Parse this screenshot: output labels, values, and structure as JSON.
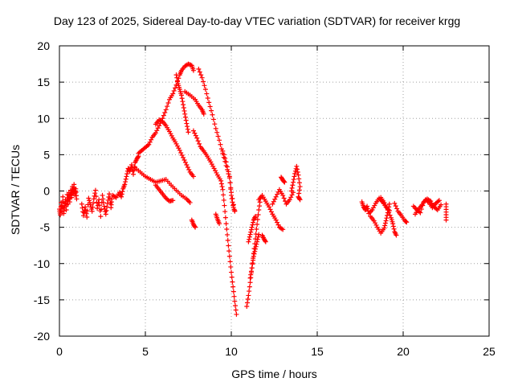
{
  "chart_data": {
    "type": "scatter",
    "title": "Day 123 of 2025, Sidereal Day-to-day VTEC variation (SDTVAR) for receiver krgg",
    "xlabel": "GPS time / hours",
    "ylabel": "SDTVAR / TECUs",
    "xlim": [
      0,
      25
    ],
    "ylim": [
      -20,
      20
    ],
    "xticks": [
      0,
      5,
      10,
      15,
      20,
      25
    ],
    "yticks": [
      -20,
      -15,
      -10,
      -5,
      0,
      5,
      10,
      15,
      20
    ],
    "grid": true,
    "marker": "+",
    "color": "#ff0000",
    "segments": [
      [
        [
          0.0,
          -2.5
        ],
        [
          0.05,
          -3.3
        ],
        [
          0.1,
          -1.6
        ],
        [
          0.15,
          -2.9
        ],
        [
          0.2,
          -0.8
        ],
        [
          0.25,
          -3.1
        ],
        [
          0.3,
          -2.0
        ],
        [
          0.35,
          -1.2
        ],
        [
          0.4,
          -2.6
        ],
        [
          0.45,
          -0.5
        ],
        [
          0.5,
          -1.8
        ]
      ],
      [
        [
          0.5,
          -1.3
        ],
        [
          0.55,
          -0.2
        ],
        [
          0.6,
          -1.5
        ],
        [
          0.65,
          0.1
        ],
        [
          0.7,
          -0.9
        ],
        [
          0.75,
          0.6
        ],
        [
          0.8,
          -0.4
        ],
        [
          0.85,
          0.9
        ],
        [
          0.9,
          -0.6
        ],
        [
          0.95,
          0.3
        ],
        [
          1.0,
          -1.1
        ]
      ],
      [
        [
          1.3,
          -1.8
        ],
        [
          1.4,
          -3.4
        ],
        [
          1.5,
          -2.2
        ],
        [
          1.6,
          -3.6
        ],
        [
          1.7,
          -1.0
        ],
        [
          1.8,
          -1.9
        ],
        [
          1.9,
          -2.8
        ],
        [
          2.0,
          -1.1
        ],
        [
          2.1,
          0.1
        ],
        [
          2.2,
          -2.4
        ],
        [
          2.3,
          -1.2
        ],
        [
          2.4,
          -3.5
        ],
        [
          2.5,
          -0.6
        ],
        [
          2.6,
          -2.1
        ],
        [
          2.7,
          -3.2
        ],
        [
          2.8,
          -1.7
        ],
        [
          2.9,
          -0.4
        ],
        [
          3.0,
          -2.3
        ],
        [
          3.05,
          -1.1
        ]
      ],
      [
        [
          3.1,
          -0.6
        ],
        [
          3.3,
          -0.9
        ],
        [
          3.5,
          -0.2
        ],
        [
          3.6,
          -0.8
        ],
        [
          3.7,
          0.3
        ],
        [
          3.8,
          0.9
        ],
        [
          3.9,
          2.0
        ],
        [
          4.0,
          3.1
        ],
        [
          4.1,
          2.7
        ],
        [
          4.2,
          3.6
        ],
        [
          4.3,
          2.3
        ],
        [
          4.4,
          3.9
        ],
        [
          4.5,
          4.4
        ],
        [
          4.6,
          4.8
        ]
      ],
      [
        [
          4.6,
          5.2
        ],
        [
          4.8,
          5.6
        ],
        [
          5.0,
          6.0
        ],
        [
          5.2,
          6.4
        ],
        [
          5.4,
          7.4
        ],
        [
          5.6,
          8.0
        ],
        [
          5.8,
          9.0
        ],
        [
          6.0,
          10.0
        ],
        [
          6.2,
          11.2
        ],
        [
          6.4,
          12.6
        ],
        [
          6.6,
          13.4
        ],
        [
          6.8,
          14.6
        ],
        [
          7.0,
          16.0
        ],
        [
          7.1,
          16.6
        ],
        [
          7.3,
          17.2
        ],
        [
          7.5,
          17.5
        ],
        [
          7.7,
          17.3
        ],
        [
          7.8,
          16.6
        ]
      ],
      [
        [
          6.8,
          16.0
        ],
        [
          6.9,
          14.8
        ],
        [
          7.0,
          14.0
        ],
        [
          7.1,
          13.2
        ],
        [
          7.2,
          11.9
        ],
        [
          7.3,
          10.6
        ],
        [
          7.4,
          9.3
        ],
        [
          7.5,
          8.1
        ]
      ],
      [
        [
          5.6,
          9.2
        ],
        [
          5.8,
          9.8
        ],
        [
          6.0,
          9.6
        ],
        [
          6.2,
          9.0
        ],
        [
          6.4,
          8.2
        ],
        [
          6.6,
          7.3
        ],
        [
          6.8,
          6.5
        ],
        [
          7.0,
          5.6
        ],
        [
          7.2,
          4.6
        ],
        [
          7.4,
          3.6
        ],
        [
          7.6,
          2.6
        ],
        [
          7.8,
          2.0
        ]
      ],
      [
        [
          7.3,
          13.7
        ],
        [
          7.6,
          13.2
        ],
        [
          7.9,
          12.6
        ],
        [
          8.1,
          11.8
        ],
        [
          8.3,
          11.2
        ],
        [
          8.4,
          10.6
        ]
      ],
      [
        [
          8.1,
          16.8
        ],
        [
          8.3,
          15.6
        ],
        [
          8.5,
          14.0
        ],
        [
          8.7,
          12.2
        ],
        [
          8.9,
          10.5
        ],
        [
          9.1,
          8.6
        ],
        [
          9.3,
          7.0
        ],
        [
          9.5,
          5.2
        ],
        [
          9.7,
          3.5
        ],
        [
          9.9,
          1.8
        ],
        [
          10.0,
          -0.2
        ],
        [
          10.2,
          -2.7
        ]
      ],
      [
        [
          7.8,
          8.3
        ],
        [
          8.0,
          7.3
        ],
        [
          8.2,
          6.1
        ],
        [
          8.4,
          5.5
        ],
        [
          8.6,
          4.8
        ],
        [
          8.8,
          4.0
        ],
        [
          9.0,
          3.1
        ],
        [
          9.2,
          2.2
        ],
        [
          9.4,
          1.4
        ],
        [
          9.5,
          0.2
        ],
        [
          9.6,
          -2.0
        ],
        [
          9.7,
          -4.5
        ],
        [
          9.8,
          -6.8
        ],
        [
          9.9,
          -9.0
        ],
        [
          10.0,
          -11.2
        ],
        [
          10.1,
          -13.2
        ],
        [
          10.2,
          -15.2
        ],
        [
          10.3,
          -17.0
        ]
      ],
      [
        [
          9.5,
          5.5
        ],
        [
          9.7,
          4.0
        ],
        [
          9.9,
          2.0
        ],
        [
          10.0,
          -0.6
        ],
        [
          10.1,
          -2.0
        ],
        [
          10.2,
          -2.8
        ]
      ],
      [
        [
          4.4,
          3.2
        ],
        [
          4.7,
          2.6
        ],
        [
          5.0,
          2.0
        ],
        [
          5.3,
          1.6
        ],
        [
          5.6,
          1.2
        ],
        [
          5.9,
          1.4
        ],
        [
          6.2,
          1.6
        ],
        [
          6.5,
          0.8
        ],
        [
          6.8,
          0.1
        ],
        [
          7.1,
          -0.6
        ],
        [
          7.4,
          -1.1
        ],
        [
          7.6,
          -1.6
        ]
      ],
      [
        [
          5.6,
          0.8
        ],
        [
          5.8,
          0.2
        ],
        [
          6.0,
          -0.4
        ],
        [
          6.2,
          -1.0
        ],
        [
          6.4,
          -1.4
        ],
        [
          6.6,
          -1.3
        ]
      ],
      [
        [
          7.7,
          -4.0
        ],
        [
          7.8,
          -4.6
        ],
        [
          7.9,
          -5.0
        ]
      ],
      [
        [
          9.1,
          -3.2
        ],
        [
          9.2,
          -3.9
        ],
        [
          9.3,
          -4.5
        ]
      ],
      [
        [
          10.9,
          -15.9
        ],
        [
          11.0,
          -14.4
        ],
        [
          11.1,
          -12.6
        ],
        [
          11.2,
          -10.6
        ],
        [
          11.3,
          -8.6
        ],
        [
          11.4,
          -6.6
        ],
        [
          11.5,
          -4.6
        ],
        [
          11.6,
          -2.6
        ],
        [
          11.7,
          -1.0
        ]
      ],
      [
        [
          11.0,
          -7.0
        ],
        [
          11.1,
          -6.0
        ],
        [
          11.2,
          -5.0
        ],
        [
          11.3,
          -4.0
        ],
        [
          11.4,
          -3.5
        ]
      ],
      [
        [
          11.1,
          -12.0
        ],
        [
          11.2,
          -10.6
        ],
        [
          11.3,
          -9.0
        ],
        [
          11.4,
          -8.0
        ],
        [
          11.5,
          -7.0
        ],
        [
          11.6,
          -6.0
        ]
      ],
      [
        [
          11.6,
          -1.2
        ],
        [
          11.8,
          -0.6
        ],
        [
          12.0,
          -1.4
        ],
        [
          12.2,
          -2.2
        ],
        [
          12.4,
          -3.2
        ],
        [
          12.6,
          -4.0
        ],
        [
          12.8,
          -5.0
        ],
        [
          13.0,
          -5.3
        ]
      ],
      [
        [
          11.8,
          -6.1
        ],
        [
          11.9,
          -6.6
        ],
        [
          12.0,
          -7.0
        ]
      ],
      [
        [
          12.4,
          -1.8
        ],
        [
          12.6,
          -0.8
        ],
        [
          12.8,
          0.2
        ],
        [
          13.0,
          -0.6
        ],
        [
          13.2,
          -1.8
        ],
        [
          13.4,
          -1.2
        ],
        [
          13.6,
          -0.2
        ]
      ],
      [
        [
          12.9,
          1.9
        ],
        [
          13.0,
          1.5
        ],
        [
          13.1,
          1.2
        ]
      ],
      [
        [
          13.5,
          0.0
        ],
        [
          13.6,
          1.2
        ],
        [
          13.7,
          2.4
        ],
        [
          13.8,
          3.4
        ],
        [
          13.9,
          2.2
        ],
        [
          14.0,
          0.6
        ],
        [
          13.9,
          -0.8
        ],
        [
          14.0,
          -1.2
        ]
      ],
      [
        [
          17.6,
          -1.5
        ],
        [
          17.7,
          -2.2
        ],
        [
          17.8,
          -2.6
        ],
        [
          17.9,
          -2.1
        ],
        [
          18.0,
          -3.1
        ],
        [
          18.2,
          -2.6
        ],
        [
          18.4,
          -1.7
        ],
        [
          18.6,
          -1.0
        ],
        [
          18.8,
          -1.5
        ],
        [
          19.0,
          -2.2
        ],
        [
          19.2,
          -2.7
        ]
      ],
      [
        [
          18.1,
          -3.5
        ],
        [
          18.3,
          -4.1
        ],
        [
          18.5,
          -5.0
        ],
        [
          18.7,
          -5.8
        ],
        [
          18.9,
          -5.1
        ],
        [
          19.0,
          -4.1
        ],
        [
          19.1,
          -3.0
        ],
        [
          19.2,
          -1.8
        ]
      ],
      [
        [
          18.7,
          -0.9
        ],
        [
          18.9,
          -1.6
        ],
        [
          19.1,
          -2.6
        ],
        [
          19.3,
          -3.7
        ],
        [
          19.4,
          -4.5
        ],
        [
          19.5,
          -5.6
        ],
        [
          19.6,
          -6.1
        ]
      ],
      [
        [
          19.5,
          -1.7
        ],
        [
          19.7,
          -2.8
        ],
        [
          19.9,
          -3.4
        ],
        [
          20.1,
          -4.1
        ],
        [
          20.2,
          -4.3
        ]
      ],
      [
        [
          20.6,
          -2.1
        ],
        [
          20.8,
          -2.6
        ],
        [
          21.0,
          -3.0
        ],
        [
          21.2,
          -1.5
        ],
        [
          21.4,
          -1.1
        ],
        [
          21.6,
          -1.4
        ],
        [
          21.8,
          -2.2
        ],
        [
          22.0,
          -2.6
        ],
        [
          22.2,
          -1.9
        ]
      ],
      [
        [
          20.7,
          -3.2
        ],
        [
          20.9,
          -2.5
        ],
        [
          21.1,
          -1.9
        ],
        [
          21.3,
          -1.2
        ],
        [
          21.5,
          -1.6
        ],
        [
          21.7,
          -2.3
        ],
        [
          21.9,
          -1.7
        ],
        [
          22.1,
          -1.3
        ]
      ],
      [
        [
          22.5,
          -1.8
        ],
        [
          22.5,
          -2.9
        ],
        [
          22.5,
          -4.0
        ]
      ]
    ]
  }
}
